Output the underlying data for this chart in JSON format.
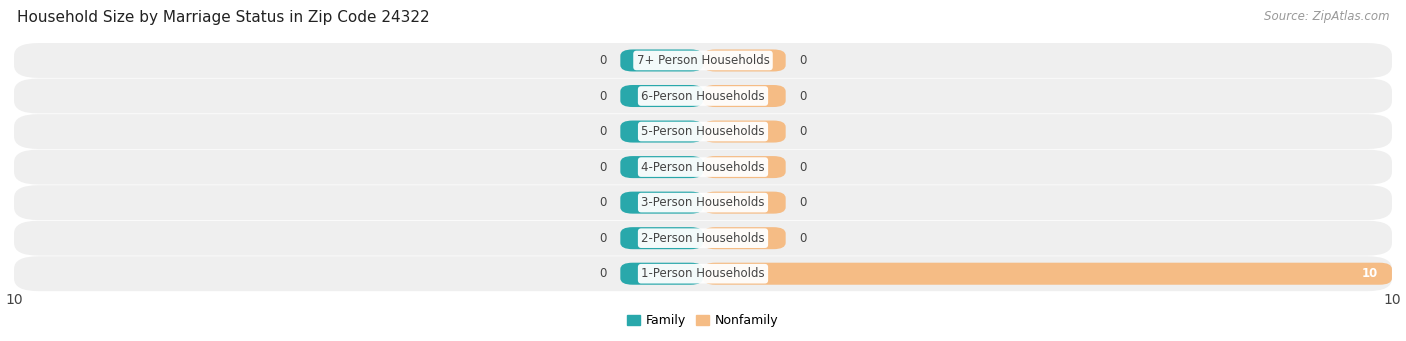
{
  "title": "Household Size by Marriage Status in Zip Code 24322",
  "source_text": "Source: ZipAtlas.com",
  "categories": [
    "7+ Person Households",
    "6-Person Households",
    "5-Person Households",
    "4-Person Households",
    "3-Person Households",
    "2-Person Households",
    "1-Person Households"
  ],
  "family_values": [
    0,
    0,
    0,
    0,
    0,
    0,
    0
  ],
  "nonfamily_values": [
    0,
    0,
    0,
    0,
    0,
    0,
    10
  ],
  "family_color": "#29a8ab",
  "nonfamily_color": "#f5bc85",
  "row_bg_color": "#efefef",
  "row_bg_color_alt": "#e6e6e6",
  "xlim_left": -10,
  "xlim_right": 10,
  "stub_size": 1.2,
  "legend_family": "Family",
  "legend_nonfamily": "Nonfamily",
  "title_fontsize": 11,
  "source_fontsize": 8.5,
  "label_fontsize": 8.5,
  "value_fontsize": 8.5,
  "bar_height": 0.62,
  "background_color": "#ffffff",
  "text_color": "#444444",
  "source_color": "#999999"
}
